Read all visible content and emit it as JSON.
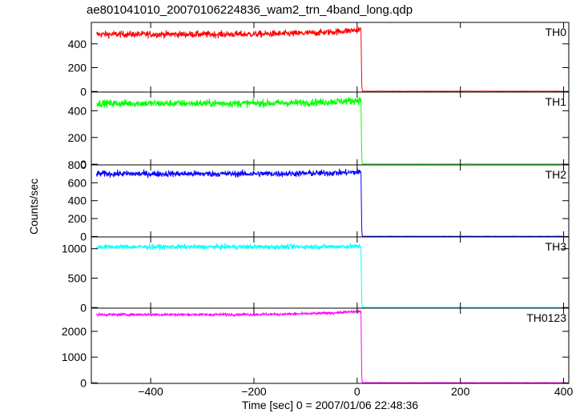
{
  "chart_data": {
    "type": "line",
    "title": "ae801041010_20070106224836_wam2_trn_4band_long.qdp",
    "xlabel": "Time [sec] 0 = 2007/01/06 22:48:36",
    "ylabel": "Counts/sec",
    "xlim": [
      -515,
      410
    ],
    "x_ticks": [
      -400,
      -200,
      0,
      200,
      400
    ],
    "x_tick_labels": [
      "−400",
      "−200",
      "0",
      "200",
      "400"
    ],
    "drop_time": 8,
    "x_start": -505,
    "x_end": 400,
    "panels": [
      {
        "name": "TH0",
        "color": "#ff0000",
        "ylim": [
          -5,
          580
        ],
        "y_ticks": [
          0,
          200,
          400
        ],
        "pre_level_start": 480,
        "pre_level_end": 520,
        "noise": 20,
        "post_level": 2
      },
      {
        "name": "TH1",
        "color": "#00ff00",
        "ylim": [
          -5,
          540
        ],
        "y_ticks": [
          0,
          200,
          400
        ],
        "pre_level_start": 455,
        "pre_level_end": 480,
        "noise": 20,
        "post_level": 2
      },
      {
        "name": "TH2",
        "color": "#0000ff",
        "ylim": [
          -5,
          800
        ],
        "y_ticks": [
          0,
          200,
          400,
          600,
          800
        ],
        "pre_level_start": 700,
        "pre_level_end": 720,
        "noise": 25,
        "post_level": 2
      },
      {
        "name": "TH3",
        "color": "#00ffff",
        "ylim": [
          -10,
          1200
        ],
        "y_ticks": [
          0,
          500,
          1000
        ],
        "pre_level_start": 1030,
        "pre_level_end": 1040,
        "noise": 30,
        "post_level": 3
      },
      {
        "name": "TH0123",
        "color": "#ff00ff",
        "ylim": [
          -20,
          2900
        ],
        "y_ticks": [
          0,
          1000,
          2000
        ],
        "pre_level_start": 2650,
        "pre_level_end": 2780,
        "noise": 35,
        "post_level": 8
      }
    ]
  }
}
